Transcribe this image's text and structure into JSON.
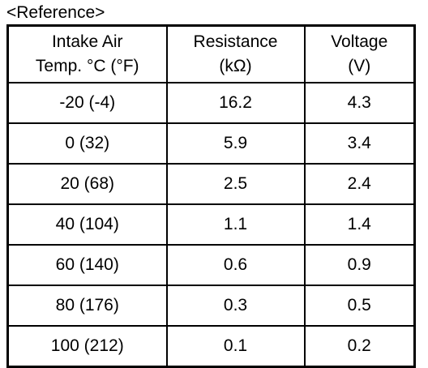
{
  "caption": "<Reference>",
  "columns": [
    {
      "line1": "Intake Air",
      "line2": "Temp. °C (°F)"
    },
    {
      "line1": "Resistance",
      "line2": "(kΩ)"
    },
    {
      "line1": "Voltage",
      "line2": "(V)"
    }
  ],
  "rows": [
    {
      "temp": "-20 (-4)",
      "resistance": "16.2",
      "voltage": "4.3"
    },
    {
      "temp": "0 (32)",
      "resistance": "5.9",
      "voltage": "3.4"
    },
    {
      "temp": "20 (68)",
      "resistance": "2.5",
      "voltage": "2.4"
    },
    {
      "temp": "40 (104)",
      "resistance": "1.1",
      "voltage": "1.4"
    },
    {
      "temp": "60 (140)",
      "resistance": "0.6",
      "voltage": "0.9"
    },
    {
      "temp": "80 (176)",
      "resistance": "0.3",
      "voltage": "0.5"
    },
    {
      "temp": "100 (212)",
      "resistance": "0.1",
      "voltage": "0.2"
    }
  ]
}
